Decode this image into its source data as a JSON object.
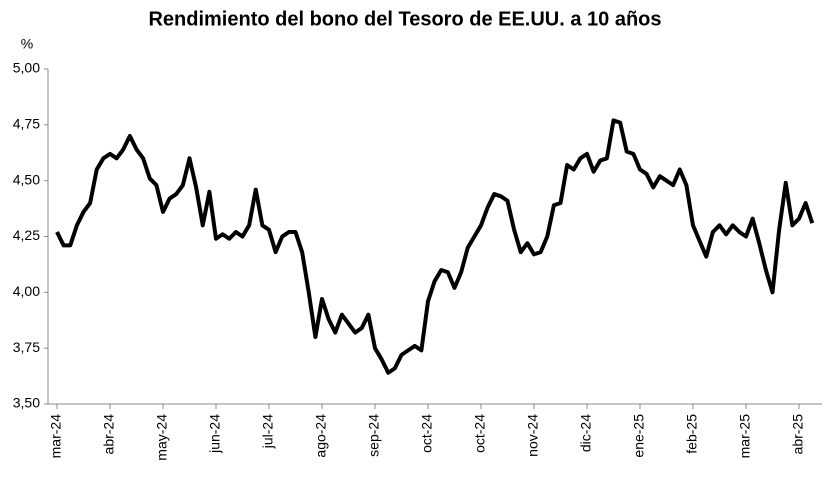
{
  "chart_data": {
    "type": "line",
    "title": "Rendimiento del bono del Tesoro de EE.UU. a 10 años",
    "y_label": "%",
    "categories": [
      "mar-24",
      null,
      null,
      null,
      null,
      null,
      null,
      null,
      "abr-24",
      null,
      null,
      null,
      null,
      null,
      null,
      null,
      "may-24",
      null,
      null,
      null,
      null,
      null,
      null,
      null,
      "jun-24",
      null,
      null,
      null,
      null,
      null,
      null,
      null,
      "jul-24",
      null,
      null,
      null,
      null,
      null,
      null,
      null,
      "ago-24",
      null,
      null,
      null,
      null,
      null,
      null,
      null,
      "sep-24",
      null,
      null,
      null,
      null,
      null,
      null,
      null,
      "oct-24",
      null,
      null,
      null,
      null,
      null,
      null,
      null,
      "oct-24",
      null,
      null,
      null,
      null,
      null,
      null,
      null,
      "nov-24",
      null,
      null,
      null,
      null,
      null,
      null,
      null,
      "dic-24",
      null,
      null,
      null,
      null,
      null,
      null,
      null,
      "ene-25",
      null,
      null,
      null,
      null,
      null,
      null,
      null,
      "feb-25",
      null,
      null,
      null,
      null,
      null,
      null,
      null,
      "mar-25",
      null,
      null,
      null,
      null,
      null,
      null,
      null,
      "abr-25",
      null,
      null
    ],
    "series": [
      {
        "name": "Rendimiento",
        "color": "#000000",
        "values": [
          4.27,
          4.21,
          4.21,
          4.3,
          4.36,
          4.4,
          4.55,
          4.6,
          4.62,
          4.6,
          4.64,
          4.7,
          4.64,
          4.6,
          4.51,
          4.48,
          4.36,
          4.42,
          4.44,
          4.48,
          4.6,
          4.47,
          4.3,
          4.45,
          4.24,
          4.26,
          4.24,
          4.27,
          4.25,
          4.3,
          4.46,
          4.3,
          4.28,
          4.18,
          4.25,
          4.27,
          4.27,
          4.18,
          4.0,
          3.8,
          3.97,
          3.88,
          3.82,
          3.9,
          3.86,
          3.82,
          3.84,
          3.9,
          3.75,
          3.7,
          3.64,
          3.66,
          3.72,
          3.74,
          3.76,
          3.74,
          3.96,
          4.05,
          4.1,
          4.09,
          4.02,
          4.09,
          4.2,
          4.25,
          4.3,
          4.38,
          4.44,
          4.43,
          4.41,
          4.28,
          4.18,
          4.22,
          4.17,
          4.18,
          4.25,
          4.39,
          4.4,
          4.57,
          4.55,
          4.6,
          4.62,
          4.54,
          4.59,
          4.6,
          4.77,
          4.76,
          4.63,
          4.62,
          4.55,
          4.53,
          4.47,
          4.52,
          4.5,
          4.48,
          4.55,
          4.48,
          4.3,
          4.23,
          4.16,
          4.27,
          4.3,
          4.26,
          4.3,
          4.27,
          4.25,
          4.33,
          4.22,
          4.1,
          4.0,
          4.28,
          4.49,
          4.3,
          4.33,
          4.4,
          4.31
        ]
      }
    ],
    "ylim": [
      3.5,
      5.0
    ],
    "yticks": [
      {
        "value": 3.5,
        "label": "3,50"
      },
      {
        "value": 3.75,
        "label": "3,75"
      },
      {
        "value": 4.0,
        "label": "4,00"
      },
      {
        "value": 4.25,
        "label": "4,25"
      },
      {
        "value": 4.5,
        "label": "4,50"
      },
      {
        "value": 4.75,
        "label": "4,75"
      },
      {
        "value": 5.0,
        "label": "5,00"
      }
    ],
    "grid": false
  }
}
